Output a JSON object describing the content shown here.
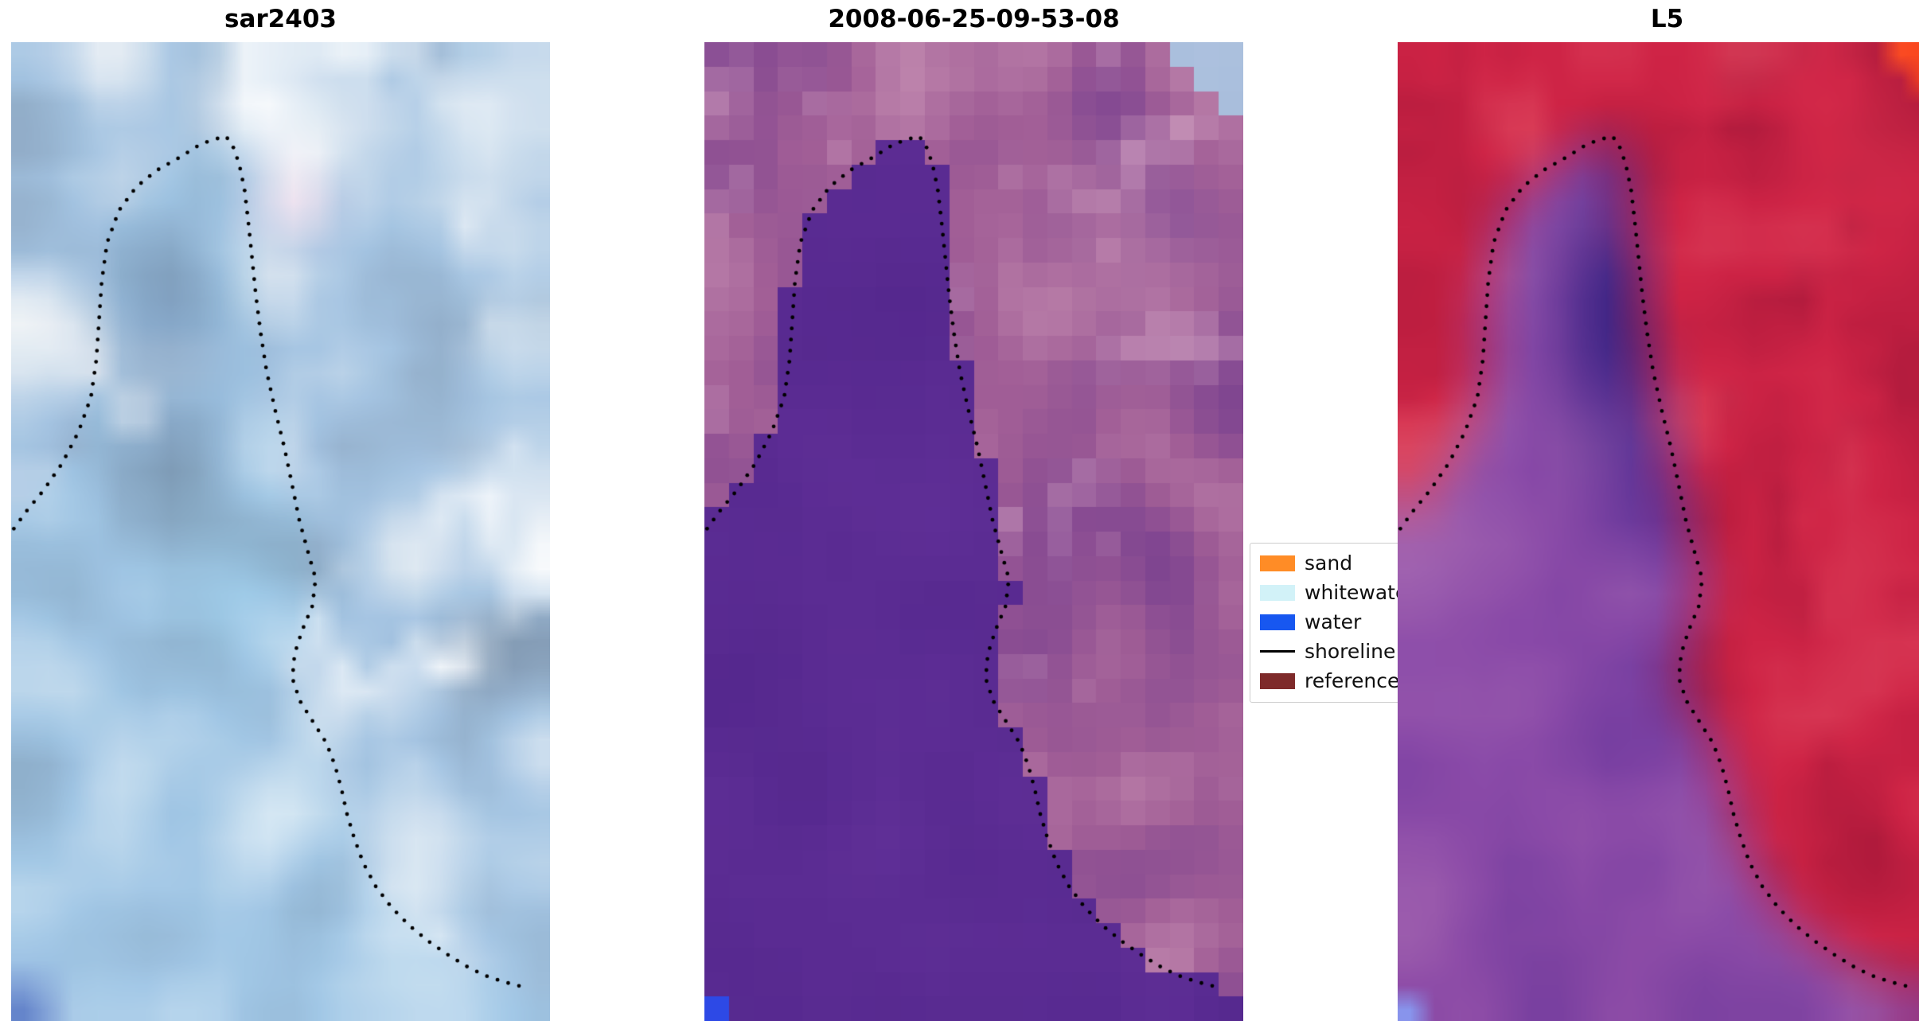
{
  "chart_data": {
    "type": "heatmap",
    "figure_kind": "satellite-shoreline-detection-figure",
    "panels": [
      {
        "title": "sar2403",
        "image_kind": "sar"
      },
      {
        "title": "2008-06-25-09-53-08",
        "image_kind": "classified"
      },
      {
        "title": "L5",
        "image_kind": "l5"
      }
    ],
    "legend": {
      "items": [
        {
          "label": "sand",
          "swatch": "patch",
          "color": "#ff8c26"
        },
        {
          "label": "whitewater",
          "swatch": "patch",
          "color": "#d2f2f8"
        },
        {
          "label": "water",
          "swatch": "patch",
          "color": "#1757f0"
        },
        {
          "label": "shoreline",
          "swatch": "line",
          "color": "#000000"
        },
        {
          "label": "reference shoreline",
          "swatch": "patch",
          "color": "#7e2a2a"
        }
      ]
    },
    "shoreline_style": {
      "marker": "dot",
      "color": "#000000",
      "spacing_px": 14,
      "radius_px": 2.4
    },
    "shoreline_uv": [
      [
        0.005,
        0.497
      ],
      [
        0.03,
        0.478
      ],
      [
        0.06,
        0.458
      ],
      [
        0.095,
        0.43
      ],
      [
        0.125,
        0.398
      ],
      [
        0.148,
        0.363
      ],
      [
        0.158,
        0.325
      ],
      [
        0.163,
        0.285
      ],
      [
        0.168,
        0.245
      ],
      [
        0.178,
        0.205
      ],
      [
        0.2,
        0.172
      ],
      [
        0.232,
        0.148
      ],
      [
        0.27,
        0.131
      ],
      [
        0.315,
        0.117
      ],
      [
        0.352,
        0.104
      ],
      [
        0.385,
        0.098
      ],
      [
        0.398,
        0.096
      ],
      [
        0.41,
        0.104
      ],
      [
        0.423,
        0.124
      ],
      [
        0.433,
        0.15
      ],
      [
        0.44,
        0.183
      ],
      [
        0.447,
        0.22
      ],
      [
        0.454,
        0.258
      ],
      [
        0.463,
        0.297
      ],
      [
        0.474,
        0.336
      ],
      [
        0.49,
        0.376
      ],
      [
        0.507,
        0.414
      ],
      [
        0.521,
        0.451
      ],
      [
        0.535,
        0.489
      ],
      [
        0.551,
        0.521
      ],
      [
        0.565,
        0.548
      ],
      [
        0.559,
        0.576
      ],
      [
        0.54,
        0.601
      ],
      [
        0.526,
        0.625
      ],
      [
        0.522,
        0.65
      ],
      [
        0.536,
        0.673
      ],
      [
        0.561,
        0.695
      ],
      [
        0.585,
        0.716
      ],
      [
        0.601,
        0.739
      ],
      [
        0.613,
        0.763
      ],
      [
        0.623,
        0.788
      ],
      [
        0.636,
        0.812
      ],
      [
        0.653,
        0.838
      ],
      [
        0.676,
        0.862
      ],
      [
        0.706,
        0.884
      ],
      [
        0.74,
        0.903
      ],
      [
        0.778,
        0.92
      ],
      [
        0.815,
        0.934
      ],
      [
        0.851,
        0.946
      ],
      [
        0.886,
        0.955
      ],
      [
        0.921,
        0.961
      ],
      [
        0.956,
        0.966
      ]
    ]
  },
  "render": {
    "background": "#ffffff",
    "panels": [
      {
        "kind": "sar",
        "seed": 11,
        "grid": [
          22,
          40
        ],
        "smooth": true,
        "stops": [
          "#7b90a8",
          "#a4c4e2",
          "#f4f6f8"
        ],
        "water_tint": "#8fc8ea",
        "cloud_color": "#ffffff",
        "bottom_tint": "#a6cdec",
        "highlights": [
          {
            "u": 0.46,
            "v": 0.065,
            "rx": 0.1,
            "ry": 0.05,
            "c": "#ffffff",
            "s": 0.9,
            "layer": "any"
          },
          {
            "u": 0.53,
            "v": 0.165,
            "rx": 0.07,
            "ry": 0.04,
            "c": "#fbe8f2",
            "s": 0.85,
            "layer": "any"
          },
          {
            "u": 0.86,
            "v": 0.07,
            "rx": 0.09,
            "ry": 0.05,
            "c": "#f6f9fb",
            "s": 0.75,
            "layer": "any"
          },
          {
            "u": 0.95,
            "v": 0.3,
            "rx": 0.07,
            "ry": 0.045,
            "c": "#eef4f9",
            "s": 0.6,
            "layer": "any"
          },
          {
            "u": 0.9,
            "v": 0.46,
            "rx": 0.08,
            "ry": 0.05,
            "c": "#ffffff",
            "s": 0.55,
            "layer": "any"
          },
          {
            "u": 0.28,
            "v": 0.3,
            "rx": 0.12,
            "ry": 0.1,
            "c": "#6f8cb0",
            "s": 0.5,
            "layer": "any"
          },
          {
            "u": 0.42,
            "v": 0.56,
            "rx": 0.13,
            "ry": 0.08,
            "c": "#9ed2ee",
            "s": 0.45,
            "layer": "any"
          },
          {
            "u": 0.57,
            "v": 0.7,
            "rx": 0.06,
            "ry": 0.035,
            "c": "#f2f7fa",
            "s": 0.55,
            "layer": "any"
          },
          {
            "u": 0.76,
            "v": 0.84,
            "rx": 0.1,
            "ry": 0.05,
            "c": "#f2f6f9",
            "s": 0.6,
            "layer": "any"
          },
          {
            "u": 0.03,
            "v": 0.985,
            "rx": 0.05,
            "ry": 0.03,
            "c": "#5474c4",
            "s": 0.85,
            "layer": "any"
          }
        ]
      },
      {
        "kind": "classified",
        "seed": 23,
        "grid": [
          22,
          40
        ],
        "smooth": false,
        "water_colors": [
          "#55288e",
          "#66339c"
        ],
        "land_stops": [
          "#7e4490",
          "#a15e96",
          "#c38bb0"
        ],
        "land_light": "#cf9fc0",
        "cornerTR": {
          "steps": [
            0.88,
            0.93,
            0.97
          ],
          "color": "#9eb6d8"
        },
        "cornerBL": {
          "w": 1,
          "h": 1,
          "color": "#2d49e6"
        },
        "highlights": [
          {
            "u": 0.78,
            "v": 0.22,
            "rx": 0.15,
            "ry": 0.1,
            "c": "#c691b4",
            "s": 0.4,
            "layer": "land"
          },
          {
            "u": 0.64,
            "v": 0.56,
            "rx": 0.12,
            "ry": 0.08,
            "c": "#7a4190",
            "s": 0.4,
            "layer": "land"
          }
        ]
      },
      {
        "kind": "l5",
        "seed": 37,
        "grid": [
          22,
          40
        ],
        "smooth": true,
        "soft_shore": true,
        "land_stops": [
          "#b01a3c",
          "#cf2446",
          "#e04b62"
        ],
        "land_dark": "#991536",
        "water_stops": [
          "#6f3a9e",
          "#8a4aa8",
          "#a062b0"
        ],
        "water_bottom": "#9e56a4",
        "cornerTR": {
          "steps": [
            0.93,
            0.97
          ],
          "color": "#fa4a22"
        },
        "cornerBL": {
          "w": 1,
          "h": 1,
          "color": "#8894ec"
        },
        "highlights": [
          {
            "u": 0.42,
            "v": 0.27,
            "rx": 0.12,
            "ry": 0.13,
            "c": "#33207f",
            "s": 0.85,
            "layer": "water"
          },
          {
            "u": 0.47,
            "v": 0.42,
            "rx": 0.11,
            "ry": 0.1,
            "c": "#4a2a90",
            "s": 0.5,
            "layer": "water"
          },
          {
            "u": 0.88,
            "v": 0.12,
            "rx": 0.12,
            "ry": 0.08,
            "c": "#e23550",
            "s": 0.35,
            "layer": "land"
          }
        ]
      }
    ]
  }
}
